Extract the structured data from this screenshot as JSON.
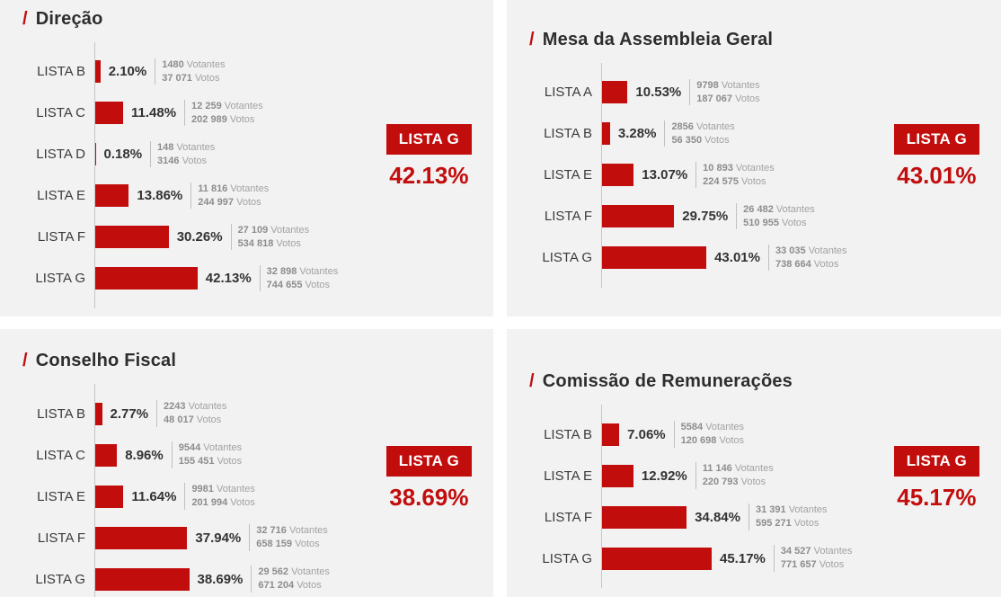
{
  "page": {
    "background": "#ffffff",
    "panel_background": "#f2f2f2",
    "accent_red": "#c20d0d",
    "title_prefix": "/"
  },
  "labels": {
    "votantes": "Votantes",
    "votos": "Votos"
  },
  "chart_data": [
    {
      "type": "bar",
      "orientation": "horizontal",
      "title": "Direção",
      "xlabel": "",
      "ylabel": "",
      "xlim": [
        0,
        50
      ],
      "grid": false,
      "categories": [
        "LISTA B",
        "LISTA C",
        "LISTA D",
        "LISTA E",
        "LISTA F",
        "LISTA G"
      ],
      "values_pct": [
        2.1,
        11.48,
        0.18,
        13.86,
        30.26,
        42.13
      ],
      "votantes_values": [
        1480,
        12259,
        148,
        11816,
        27109,
        32898
      ],
      "votos_values": [
        37071,
        202989,
        3146,
        244997,
        534818,
        744655
      ],
      "winner": {
        "label": "LISTA G",
        "pct": "42.13%"
      },
      "rows": [
        {
          "label": "LISTA B",
          "pct": "2.10%",
          "votantes": "1480",
          "votos": "37 071"
        },
        {
          "label": "LISTA C",
          "pct": "11.48%",
          "votantes": "12 259",
          "votos": "202 989"
        },
        {
          "label": "LISTA D",
          "pct": "0.18%",
          "votantes": "148",
          "votos": "3146"
        },
        {
          "label": "LISTA E",
          "pct": "13.86%",
          "votantes": "11 816",
          "votos": "244 997"
        },
        {
          "label": "LISTA F",
          "pct": "30.26%",
          "votantes": "27 109",
          "votos": "534 818"
        },
        {
          "label": "LISTA G",
          "pct": "42.13%",
          "votantes": "32 898",
          "votos": "744 655"
        }
      ]
    },
    {
      "type": "bar",
      "orientation": "horizontal",
      "title": "Mesa da Assembleia Geral",
      "xlabel": "",
      "ylabel": "",
      "xlim": [
        0,
        50
      ],
      "grid": false,
      "categories": [
        "LISTA A",
        "LISTA B",
        "LISTA E",
        "LISTA F",
        "LISTA G"
      ],
      "values_pct": [
        10.53,
        3.28,
        13.07,
        29.75,
        43.01
      ],
      "votantes_values": [
        9798,
        2856,
        10893,
        26482,
        33035
      ],
      "votos_values": [
        187067,
        56350,
        224575,
        510955,
        738664
      ],
      "winner": {
        "label": "LISTA G",
        "pct": "43.01%"
      },
      "rows": [
        {
          "label": "LISTA A",
          "pct": "10.53%",
          "votantes": "9798",
          "votos": "187 067"
        },
        {
          "label": "LISTA B",
          "pct": "3.28%",
          "votantes": "2856",
          "votos": "56 350"
        },
        {
          "label": "LISTA E",
          "pct": "13.07%",
          "votantes": "10 893",
          "votos": "224 575"
        },
        {
          "label": "LISTA F",
          "pct": "29.75%",
          "votantes": "26 482",
          "votos": "510 955"
        },
        {
          "label": "LISTA G",
          "pct": "43.01%",
          "votantes": "33 035",
          "votos": "738 664"
        }
      ]
    },
    {
      "type": "bar",
      "orientation": "horizontal",
      "title": "Conselho Fiscal",
      "xlabel": "",
      "ylabel": "",
      "xlim": [
        0,
        50
      ],
      "grid": false,
      "categories": [
        "LISTA B",
        "LISTA C",
        "LISTA E",
        "LISTA F",
        "LISTA G"
      ],
      "values_pct": [
        2.77,
        8.96,
        11.64,
        37.94,
        38.69
      ],
      "votantes_values": [
        2243,
        9544,
        9981,
        32716,
        29562
      ],
      "votos_values": [
        48017,
        155451,
        201994,
        658159,
        671204
      ],
      "winner": {
        "label": "LISTA G",
        "pct": "38.69%"
      },
      "rows": [
        {
          "label": "LISTA B",
          "pct": "2.77%",
          "votantes": "2243",
          "votos": "48 017"
        },
        {
          "label": "LISTA C",
          "pct": "8.96%",
          "votantes": "9544",
          "votos": "155 451"
        },
        {
          "label": "LISTA E",
          "pct": "11.64%",
          "votantes": "9981",
          "votos": "201 994"
        },
        {
          "label": "LISTA F",
          "pct": "37.94%",
          "votantes": "32 716",
          "votos": "658 159"
        },
        {
          "label": "LISTA G",
          "pct": "38.69%",
          "votantes": "29 562",
          "votos": "671 204"
        }
      ]
    },
    {
      "type": "bar",
      "orientation": "horizontal",
      "title": "Comissão de Remunerações",
      "xlabel": "",
      "ylabel": "",
      "xlim": [
        0,
        50
      ],
      "grid": false,
      "categories": [
        "LISTA B",
        "LISTA E",
        "LISTA F",
        "LISTA G"
      ],
      "values_pct": [
        7.06,
        12.92,
        34.84,
        45.17
      ],
      "votantes_values": [
        5584,
        11146,
        31391,
        34527
      ],
      "votos_values": [
        120698,
        220793,
        595271,
        771657
      ],
      "winner": {
        "label": "LISTA G",
        "pct": "45.17%"
      },
      "rows": [
        {
          "label": "LISTA B",
          "pct": "7.06%",
          "votantes": "5584",
          "votos": "120 698"
        },
        {
          "label": "LISTA E",
          "pct": "12.92%",
          "votantes": "11 146",
          "votos": "220 793"
        },
        {
          "label": "LISTA F",
          "pct": "34.84%",
          "votantes": "31 391",
          "votos": "595 271"
        },
        {
          "label": "LISTA G",
          "pct": "45.17%",
          "votantes": "34 527",
          "votos": "771 657"
        }
      ]
    }
  ]
}
